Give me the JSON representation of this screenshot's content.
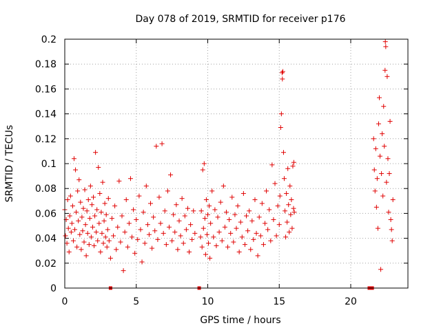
{
  "chart_data": {
    "type": "scatter",
    "title": "Day 078 of 2019, SRMTID for receiver p176",
    "xlabel": "GPS time / hours",
    "ylabel": "SRMTID / TECUs",
    "xlim": [
      0,
      24
    ],
    "ylim": [
      0,
      0.2
    ],
    "x_ticks": [
      0,
      5,
      10,
      15,
      20
    ],
    "x_tick_labels": [
      "0",
      "5",
      "10",
      "15",
      "20"
    ],
    "y_ticks": [
      0,
      0.02,
      0.04,
      0.06,
      0.08,
      0.1,
      0.12,
      0.14,
      0.16,
      0.18,
      0.2
    ],
    "y_tick_labels": [
      "0",
      "0.02",
      "0.04",
      "0.06",
      "0.08",
      "0.1",
      "0.12",
      "0.14",
      "0.16",
      "0.18",
      "0.2"
    ],
    "grid": true,
    "marker": "+",
    "series_color": "#e00000",
    "gap_markers": [
      {
        "x": 3.2,
        "y": 0
      },
      {
        "x": 9.4,
        "y": 0
      },
      {
        "x": 21.3,
        "y": 0
      },
      {
        "x": 21.5,
        "y": 0
      }
    ],
    "series": [
      {
        "name": "SRMTID",
        "points": [
          [
            0.0,
            0.063
          ],
          [
            0.05,
            0.042
          ],
          [
            0.1,
            0.055
          ],
          [
            0.15,
            0.036
          ],
          [
            0.2,
            0.071
          ],
          [
            0.25,
            0.048
          ],
          [
            0.3,
            0.029
          ],
          [
            0.35,
            0.058
          ],
          [
            0.4,
            0.074
          ],
          [
            0.45,
            0.045
          ],
          [
            0.5,
            0.052
          ],
          [
            0.55,
            0.066
          ],
          [
            0.6,
            0.038
          ],
          [
            0.65,
            0.104
          ],
          [
            0.7,
            0.047
          ],
          [
            0.75,
            0.095
          ],
          [
            0.8,
            0.061
          ],
          [
            0.85,
            0.033
          ],
          [
            0.9,
            0.078
          ],
          [
            0.95,
            0.054
          ],
          [
            1.0,
            0.087
          ],
          [
            1.05,
            0.043
          ],
          [
            1.1,
            0.069
          ],
          [
            1.15,
            0.031
          ],
          [
            1.2,
            0.057
          ],
          [
            1.25,
            0.046
          ],
          [
            1.3,
            0.064
          ],
          [
            1.35,
            0.037
          ],
          [
            1.4,
            0.079
          ],
          [
            1.45,
            0.051
          ],
          [
            1.5,
            0.026
          ],
          [
            1.55,
            0.062
          ],
          [
            1.6,
            0.044
          ],
          [
            1.65,
            0.071
          ],
          [
            1.7,
            0.035
          ],
          [
            1.75,
            0.056
          ],
          [
            1.8,
            0.082
          ],
          [
            1.85,
            0.041
          ],
          [
            1.9,
            0.067
          ],
          [
            1.95,
            0.049
          ],
          [
            2.0,
            0.073
          ],
          [
            2.05,
            0.034
          ],
          [
            2.1,
            0.058
          ],
          [
            2.15,
            0.109
          ],
          [
            2.2,
            0.045
          ],
          [
            2.25,
            0.063
          ],
          [
            2.3,
            0.038
          ],
          [
            2.35,
            0.097
          ],
          [
            2.4,
            0.052
          ],
          [
            2.45,
            0.076
          ],
          [
            2.5,
            0.029
          ],
          [
            2.55,
            0.061
          ],
          [
            2.6,
            0.044
          ],
          [
            2.65,
            0.085
          ],
          [
            2.7,
            0.036
          ],
          [
            2.75,
            0.054
          ],
          [
            2.8,
            0.068
          ],
          [
            2.85,
            0.041
          ],
          [
            2.9,
            0.059
          ],
          [
            2.95,
            0.033
          ],
          [
            3.0,
            0.047
          ],
          [
            3.05,
            0.072
          ],
          [
            3.1,
            0.038
          ],
          [
            3.2,
            0.024
          ],
          [
            3.3,
            0.056
          ],
          [
            3.4,
            0.042
          ],
          [
            3.5,
            0.066
          ],
          [
            3.6,
            0.031
          ],
          [
            3.7,
            0.049
          ],
          [
            3.8,
            0.086
          ],
          [
            3.9,
            0.037
          ],
          [
            4.0,
            0.058
          ],
          [
            4.1,
            0.014
          ],
          [
            4.2,
            0.045
          ],
          [
            4.3,
            0.071
          ],
          [
            4.4,
            0.033
          ],
          [
            4.5,
            0.052
          ],
          [
            4.6,
            0.088
          ],
          [
            4.7,
            0.041
          ],
          [
            4.8,
            0.063
          ],
          [
            4.9,
            0.028
          ],
          [
            5.0,
            0.055
          ],
          [
            5.1,
            0.039
          ],
          [
            5.2,
            0.074
          ],
          [
            5.3,
            0.047
          ],
          [
            5.4,
            0.021
          ],
          [
            5.5,
            0.061
          ],
          [
            5.6,
            0.036
          ],
          [
            5.7,
            0.082
          ],
          [
            5.8,
            0.051
          ],
          [
            5.9,
            0.043
          ],
          [
            6.0,
            0.068
          ],
          [
            6.1,
            0.032
          ],
          [
            6.2,
            0.057
          ],
          [
            6.3,
            0.046
          ],
          [
            6.4,
            0.114
          ],
          [
            6.5,
            0.039
          ],
          [
            6.6,
            0.073
          ],
          [
            6.7,
            0.052
          ],
          [
            6.8,
            0.116
          ],
          [
            6.9,
            0.044
          ],
          [
            7.0,
            0.062
          ],
          [
            7.1,
            0.035
          ],
          [
            7.2,
            0.078
          ],
          [
            7.3,
            0.049
          ],
          [
            7.4,
            0.091
          ],
          [
            7.5,
            0.038
          ],
          [
            7.6,
            0.059
          ],
          [
            7.7,
            0.045
          ],
          [
            7.8,
            0.067
          ],
          [
            7.9,
            0.031
          ],
          [
            8.0,
            0.054
          ],
          [
            8.1,
            0.042
          ],
          [
            8.2,
            0.072
          ],
          [
            8.3,
            0.036
          ],
          [
            8.4,
            0.058
          ],
          [
            8.5,
            0.047
          ],
          [
            8.6,
            0.064
          ],
          [
            8.7,
            0.029
          ],
          [
            8.8,
            0.051
          ],
          [
            8.9,
            0.039
          ],
          [
            9.0,
            0.062
          ],
          [
            9.1,
            0.044
          ],
          [
            9.5,
            0.041
          ],
          [
            9.55,
            0.062
          ],
          [
            9.6,
            0.033
          ],
          [
            9.65,
            0.095
          ],
          [
            9.7,
            0.048
          ],
          [
            9.75,
            0.1
          ],
          [
            9.8,
            0.056
          ],
          [
            9.85,
            0.027
          ],
          [
            9.9,
            0.071
          ],
          [
            9.95,
            0.043
          ],
          [
            10.0,
            0.059
          ],
          [
            10.05,
            0.036
          ],
          [
            10.1,
            0.066
          ],
          [
            10.15,
            0.024
          ],
          [
            10.2,
            0.052
          ],
          [
            10.3,
            0.078
          ],
          [
            10.4,
            0.041
          ],
          [
            10.5,
            0.063
          ],
          [
            10.6,
            0.034
          ],
          [
            10.7,
            0.057
          ],
          [
            10.8,
            0.045
          ],
          [
            10.9,
            0.069
          ],
          [
            11.0,
            0.038
          ],
          [
            11.1,
            0.082
          ],
          [
            11.2,
            0.049
          ],
          [
            11.3,
            0.061
          ],
          [
            11.4,
            0.033
          ],
          [
            11.5,
            0.055
          ],
          [
            11.6,
            0.044
          ],
          [
            11.7,
            0.073
          ],
          [
            11.8,
            0.037
          ],
          [
            11.9,
            0.059
          ],
          [
            12.0,
            0.048
          ],
          [
            12.1,
            0.066
          ],
          [
            12.2,
            0.029
          ],
          [
            12.3,
            0.053
          ],
          [
            12.4,
            0.041
          ],
          [
            12.5,
            0.076
          ],
          [
            12.6,
            0.035
          ],
          [
            12.7,
            0.058
          ],
          [
            12.8,
            0.046
          ],
          [
            12.9,
            0.062
          ],
          [
            13.0,
            0.031
          ],
          [
            13.1,
            0.054
          ],
          [
            13.2,
            0.039
          ],
          [
            13.3,
            0.071
          ],
          [
            13.4,
            0.044
          ],
          [
            13.5,
            0.026
          ],
          [
            13.6,
            0.057
          ],
          [
            13.7,
            0.042
          ],
          [
            13.8,
            0.068
          ],
          [
            13.9,
            0.035
          ],
          [
            14.0,
            0.052
          ],
          [
            14.1,
            0.078
          ],
          [
            14.2,
            0.047
          ],
          [
            14.3,
            0.063
          ],
          [
            14.4,
            0.038
          ],
          [
            14.5,
            0.099
          ],
          [
            14.6,
            0.055
          ],
          [
            14.7,
            0.084
          ],
          [
            14.8,
            0.042
          ],
          [
            14.9,
            0.066
          ],
          [
            15.0,
            0.051
          ],
          [
            15.05,
            0.074
          ],
          [
            15.1,
            0.129
          ],
          [
            15.15,
            0.14
          ],
          [
            15.2,
            0.173
          ],
          [
            15.22,
            0.168
          ],
          [
            15.25,
            0.174
          ],
          [
            15.3,
            0.109
          ],
          [
            15.35,
            0.088
          ],
          [
            15.4,
            0.062
          ],
          [
            15.45,
            0.041
          ],
          [
            15.5,
            0.076
          ],
          [
            15.55,
            0.053
          ],
          [
            15.6,
            0.096
          ],
          [
            15.65,
            0.067
          ],
          [
            15.7,
            0.045
          ],
          [
            15.75,
            0.082
          ],
          [
            15.8,
            0.059
          ],
          [
            15.85,
            0.071
          ],
          [
            15.9,
            0.048
          ],
          [
            15.95,
            0.098
          ],
          [
            16.0,
            0.064
          ],
          [
            16.02,
            0.101
          ],
          [
            16.05,
            0.061
          ],
          [
            21.6,
            0.12
          ],
          [
            21.65,
            0.095
          ],
          [
            21.7,
            0.078
          ],
          [
            21.75,
            0.112
          ],
          [
            21.8,
            0.065
          ],
          [
            21.85,
            0.088
          ],
          [
            21.9,
            0.048
          ],
          [
            21.95,
            0.132
          ],
          [
            22.0,
            0.153
          ],
          [
            22.05,
            0.106
          ],
          [
            22.1,
            0.015
          ],
          [
            22.15,
            0.092
          ],
          [
            22.2,
            0.124
          ],
          [
            22.25,
            0.074
          ],
          [
            22.3,
            0.146
          ],
          [
            22.35,
            0.114
          ],
          [
            22.4,
            0.175
          ],
          [
            22.42,
            0.198
          ],
          [
            22.45,
            0.194
          ],
          [
            22.5,
            0.085
          ],
          [
            22.55,
            0.17
          ],
          [
            22.6,
            0.104
          ],
          [
            22.65,
            0.061
          ],
          [
            22.7,
            0.092
          ],
          [
            22.75,
            0.134
          ],
          [
            22.8,
            0.055
          ],
          [
            22.85,
            0.047
          ],
          [
            22.9,
            0.038
          ],
          [
            22.95,
            0.071
          ]
        ]
      }
    ]
  }
}
